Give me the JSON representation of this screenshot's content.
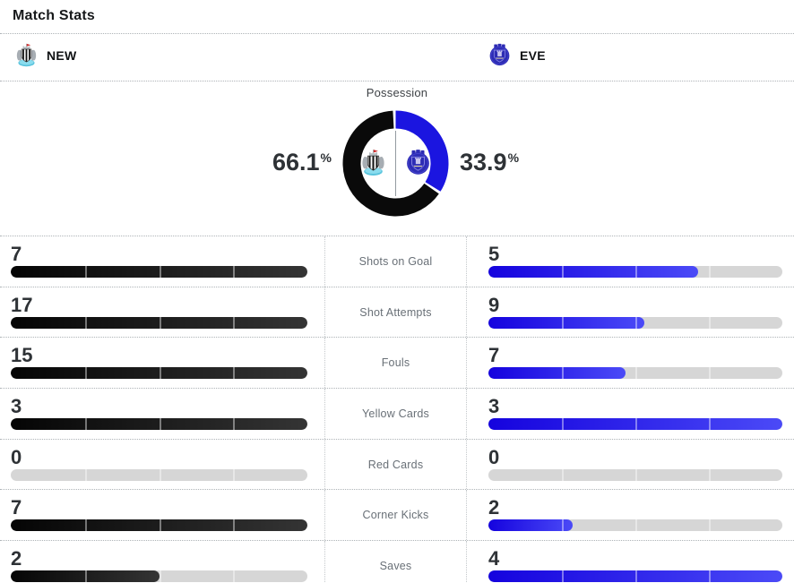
{
  "header": {
    "title": "Match Stats"
  },
  "teams": {
    "home": {
      "abbr": "NEW"
    },
    "away": {
      "abbr": "EVE"
    }
  },
  "possession": {
    "title": "Possession",
    "unit": "%",
    "home": {
      "pct": 66.1,
      "display": "66.1",
      "color": "#0a0a0a"
    },
    "away": {
      "pct": 33.9,
      "display": "33.9",
      "color": "#1b15e0"
    }
  },
  "stats": {
    "rows": [
      {
        "label": "Shots on Goal",
        "home": 7,
        "away": 5
      },
      {
        "label": "Shot Attempts",
        "home": 17,
        "away": 9
      },
      {
        "label": "Fouls",
        "home": 15,
        "away": 7
      },
      {
        "label": "Yellow Cards",
        "home": 3,
        "away": 3
      },
      {
        "label": "Red Cards",
        "home": 0,
        "away": 0
      },
      {
        "label": "Corner Kicks",
        "home": 7,
        "away": 2
      },
      {
        "label": "Saves",
        "home": 2,
        "away": 4
      }
    ]
  },
  "colors": {
    "home_bar_start": "#050505",
    "home_bar_end": "#343434",
    "away_bar_start": "#1503de",
    "away_bar_end": "#4b4af7",
    "bar_track": "#d6d6d6",
    "donut_home": "#0a0a0a",
    "donut_away": "#1b15e0",
    "dotted_rule": "#aeb3b7",
    "label_gray": "#697077"
  },
  "chart_data": [
    {
      "type": "pie",
      "title": "Possession",
      "labels": [
        "NEW",
        "EVE"
      ],
      "values": [
        66.1,
        33.9
      ],
      "unit": "%",
      "colors": [
        "#0a0a0a",
        "#1b15e0"
      ],
      "style": "donut, away segment starts at 12 o'clock clockwise, small white pad gaps between segments"
    },
    {
      "type": "bar",
      "orientation": "horizontal-paired",
      "categories": [
        "Shots on Goal",
        "Shot Attempts",
        "Fouls",
        "Yellow Cards",
        "Red Cards",
        "Corner Kicks",
        "Saves"
      ],
      "series": [
        {
          "name": "NEW",
          "values": [
            7,
            17,
            15,
            3,
            0,
            7,
            2
          ],
          "color": "black-gradient"
        },
        {
          "name": "EVE",
          "values": [
            5,
            9,
            7,
            3,
            0,
            2,
            4
          ],
          "color": "blue-gradient"
        }
      ],
      "scaling": "each bar width = value / max(home, away) of its row; gray track behind; 4 segments separated by light ticks at 25/50/75%"
    }
  ]
}
